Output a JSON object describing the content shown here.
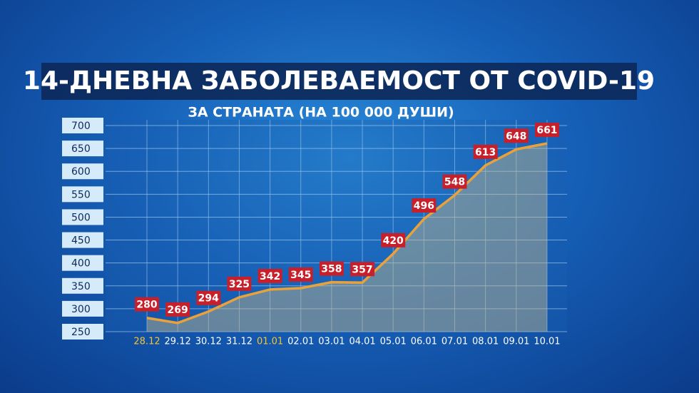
{
  "chart_data": {
    "type": "area-line",
    "title": "14-ДНЕВНА ЗАБОЛЕВАЕМОСТ ОТ COVID-19",
    "subtitle": "ЗА СТРАНАТА (НА 100 000 ДУШИ)",
    "categories": [
      "28.12",
      "29.12",
      "30.12",
      "31.12",
      "01.01",
      "02.01",
      "03.01",
      "04.01",
      "05.01",
      "06.01",
      "07.01",
      "08.01",
      "09.01",
      "10.01"
    ],
    "category_colors": [
      "#f5c531",
      "#ffffff",
      "#ffffff",
      "#ffffff",
      "#f5c531",
      "#ffffff",
      "#ffffff",
      "#ffffff",
      "#ffffff",
      "#ffffff",
      "#ffffff",
      "#ffffff",
      "#ffffff",
      "#ffffff"
    ],
    "values": [
      280,
      269,
      294,
      325,
      342,
      345,
      358,
      357,
      420,
      496,
      548,
      613,
      648,
      661
    ],
    "color": "#e9a23b",
    "label_color": "#c7202b",
    "ylim": [
      250,
      700
    ],
    "yticks": [
      250,
      300,
      350,
      400,
      450,
      500,
      550,
      600,
      650,
      700
    ],
    "grid": true
  }
}
